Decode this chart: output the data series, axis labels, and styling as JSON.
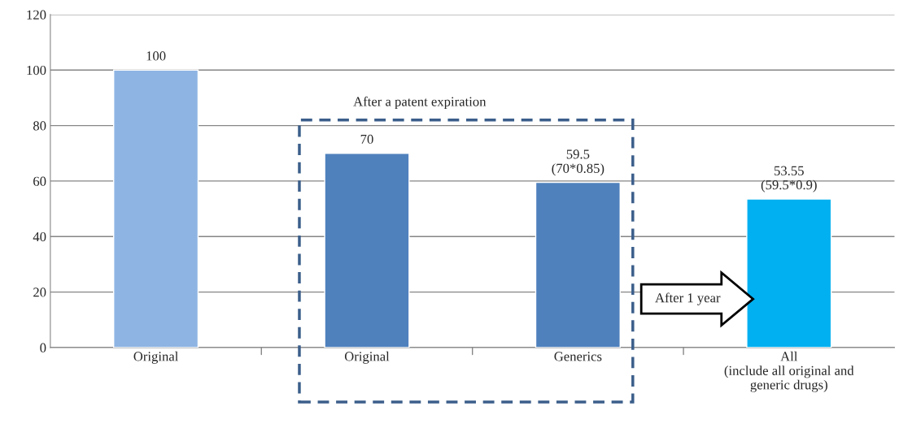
{
  "chart_data": {
    "type": "bar",
    "categories": [
      "Original",
      "Original",
      "Generics",
      "All\n(include all original and\ngeneric drugs)"
    ],
    "values": [
      100,
      70,
      59.5,
      53.55
    ],
    "colors": [
      "#8eb4e3",
      "#4f81bd",
      "#4f81bd",
      "#00b0f0"
    ],
    "value_labels": [
      "100",
      "70",
      "59.5\n(70*0.85)",
      "53.55\n(59.5*0.9)"
    ],
    "ylim": [
      0,
      120
    ],
    "yticks": [
      0,
      20,
      40,
      60,
      80,
      100,
      120
    ],
    "grid": "y",
    "annotations": [
      "After a patent expiration",
      "After 1 year"
    ]
  }
}
